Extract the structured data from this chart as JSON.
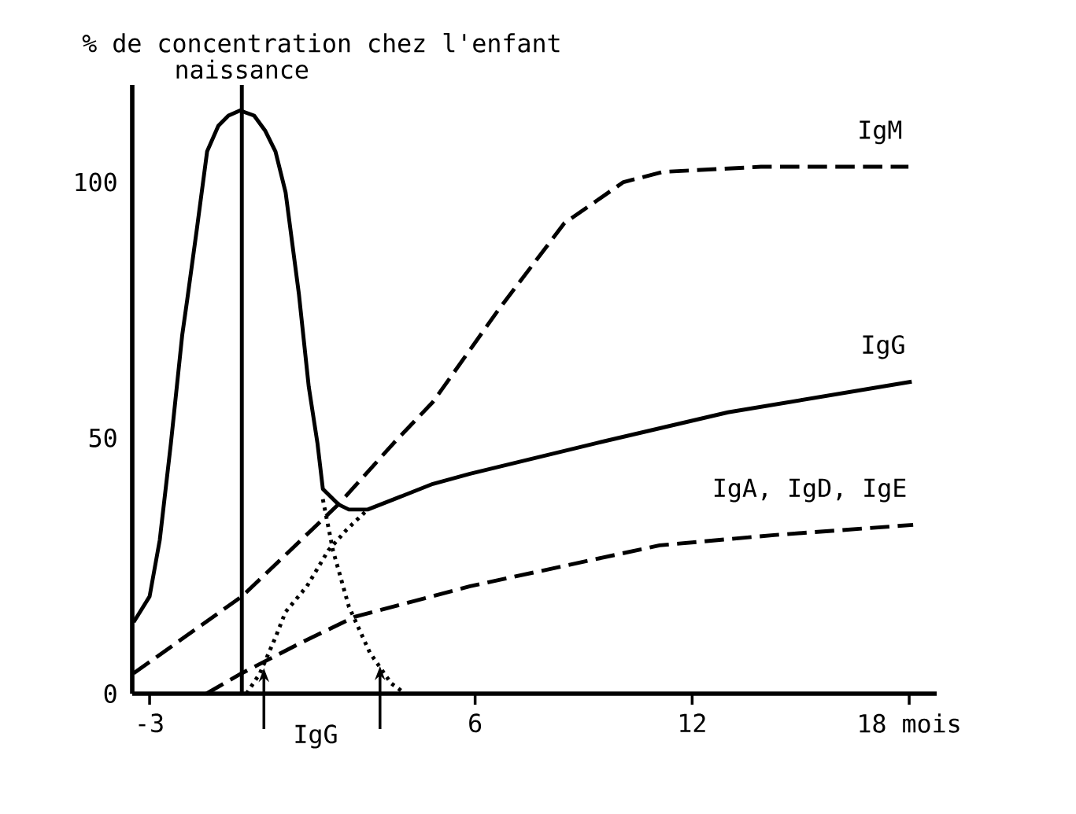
{
  "chart_data": {
    "type": "line",
    "ylabel": "% de concentration chez l'enfant",
    "xlim": [
      -3.48,
      18.76
    ],
    "ylim": [
      0,
      119
    ],
    "xticks": [
      -3,
      6,
      12,
      {
        "value": 18,
        "label": "18 mois"
      }
    ],
    "yticks": [
      0,
      50,
      100
    ],
    "series": [
      {
        "name": "IgG",
        "color": "#000000",
        "line_style": "solid",
        "x": [
          -3.44,
          -3.0,
          -2.72,
          -2.41,
          -2.1,
          -1.96,
          -1.69,
          -1.41,
          -1.1,
          -0.82,
          -0.5,
          -0.11,
          0.2,
          0.48,
          0.76,
          1.13,
          1.4,
          1.64,
          1.79,
          2.22,
          2.51,
          3.03,
          3.75,
          4.83,
          5.86,
          9.36,
          12.99,
          18.07
        ],
        "values": [
          14,
          19,
          30,
          49,
          70,
          77,
          91,
          106,
          111,
          113,
          114,
          113,
          110,
          106,
          98,
          78,
          60,
          49,
          40,
          37,
          36,
          36,
          38,
          41,
          43,
          49,
          55,
          61
        ]
      },
      {
        "name": "IgM",
        "color": "#000000",
        "line_style": "dashed",
        "x": [
          -3.44,
          -0.45,
          2.22,
          3.75,
          4.83,
          6.64,
          8.47,
          10.1,
          11.19,
          13.9,
          17.98
        ],
        "values": [
          4,
          19,
          37,
          49,
          57,
          75,
          92,
          100,
          102,
          103,
          103
        ]
      },
      {
        "name": "IgA, IgD, IgE",
        "color": "#000000",
        "line_style": "dashed",
        "x": [
          -1.43,
          -0.45,
          1.2,
          2.66,
          5.86,
          11.1,
          14.26,
          18.11
        ],
        "values": [
          0,
          4,
          10,
          15,
          21,
          29,
          31,
          33
        ]
      },
      {
        "color": "#000000",
        "line_style": "dotted",
        "x": [
          -0.32,
          0.05,
          0.48,
          0.76,
          1.35,
          1.94,
          2.44,
          3.03
        ],
        "values": [
          0,
          4,
          11,
          16,
          21,
          28,
          32,
          36
        ]
      },
      {
        "color": "#000000",
        "line_style": "dotted",
        "x": [
          1.79,
          2.07,
          2.51,
          3.09,
          3.68,
          4.07
        ],
        "values": [
          38,
          28,
          17,
          8,
          2,
          0
        ]
      }
    ],
    "ref_lines": [
      {
        "axis": "x",
        "value": -0.45,
        "label": "naissance",
        "color": "#000000"
      }
    ],
    "annotations": [
      {
        "text": "IgG",
        "x": 0.16,
        "y": 5
      }
    ]
  }
}
